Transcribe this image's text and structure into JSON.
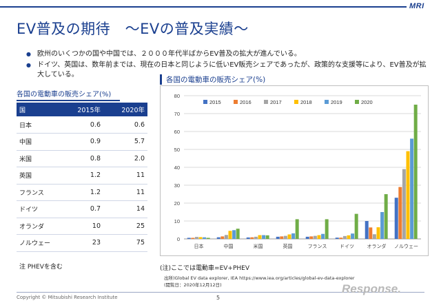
{
  "header": {
    "logo": "MRI",
    "title": "EV普及の期待　～EVの普及実績～"
  },
  "colors": {
    "brand": "#1a3f8f",
    "s2015": "#4472c4",
    "s2016": "#ed7d31",
    "s2017": "#a5a5a5",
    "s2018": "#ffc000",
    "s2019": "#5b9bd5",
    "s2020": "#70ad47"
  },
  "bullets": [
    "欧州のいくつかの国や中国では、２０００年代半ばからEV普及の拡大が進んでいる。",
    "ドイツ、英国は、数年前までは、現在の日本と同じように低いEV販売シェアであったが、政策的な支援等により、EV普及が拡大している。"
  ],
  "table": {
    "title": "各国の電動車の販売シェア(%)",
    "headers": [
      "国",
      "2015年",
      "2020年"
    ],
    "rows": [
      {
        "country": "日本",
        "y2015": "0.6",
        "y2020": "0.6"
      },
      {
        "country": "中国",
        "y2015": "0.9",
        "y2020": "5.7"
      },
      {
        "country": "米国",
        "y2015": "0.8",
        "y2020": "2.0"
      },
      {
        "country": "英国",
        "y2015": "1.2",
        "y2020": "11"
      },
      {
        "country": "フランス",
        "y2015": "1.2",
        "y2020": "11"
      },
      {
        "country": "ドイツ",
        "y2015": "0.7",
        "y2020": "14"
      },
      {
        "country": "オランダ",
        "y2015": "10",
        "y2020": "25"
      },
      {
        "country": "ノルウェー",
        "y2015": "23",
        "y2020": "75"
      }
    ],
    "note": "注 PHEVを含む"
  },
  "chart_data": {
    "type": "bar",
    "title": "各国の電動車の販売シェア(%)",
    "categories": [
      "日本",
      "中国",
      "米国",
      "英国",
      "フランス",
      "ドイツ",
      "オランダ",
      "ノルウェー"
    ],
    "series": [
      {
        "name": "2015",
        "color": "#4472c4",
        "values": [
          0.6,
          0.9,
          0.8,
          1.2,
          1.2,
          0.7,
          10,
          23
        ]
      },
      {
        "name": "2016",
        "color": "#ed7d31",
        "values": [
          0.6,
          1.4,
          0.9,
          1.4,
          1.4,
          0.7,
          6.4,
          29
        ]
      },
      {
        "name": "2017",
        "color": "#a5a5a5",
        "values": [
          1.1,
          2.2,
          1.2,
          1.7,
          1.7,
          1.6,
          2.6,
          39
        ]
      },
      {
        "name": "2018",
        "color": "#ffc000",
        "values": [
          1.0,
          4.5,
          2.1,
          2.5,
          2.1,
          2.0,
          6.5,
          49
        ]
      },
      {
        "name": "2019",
        "color": "#5b9bd5",
        "values": [
          0.9,
          4.9,
          2.1,
          3.1,
          2.8,
          3.0,
          15,
          56
        ]
      },
      {
        "name": "2020",
        "color": "#70ad47",
        "values": [
          0.6,
          5.7,
          2.0,
          11,
          11,
          14,
          25,
          75
        ]
      }
    ],
    "ylim": [
      0,
      80
    ],
    "yticks": [
      0,
      10,
      20,
      30,
      40,
      50,
      60,
      70,
      80
    ],
    "grid": true,
    "legend": "top"
  },
  "notes": {
    "definition": "(注)ここでは電動車=EV+PHEV",
    "source": "出所)Global EV data explorer, IEA https://www.iea.org/articles/global-ev-data-explorer",
    "accessed": "(閲覧日：2020年12月12日)"
  },
  "footer": {
    "copyright": "Copyright © Mitsubishi Research Institute",
    "page": "5",
    "watermark": "Response."
  }
}
